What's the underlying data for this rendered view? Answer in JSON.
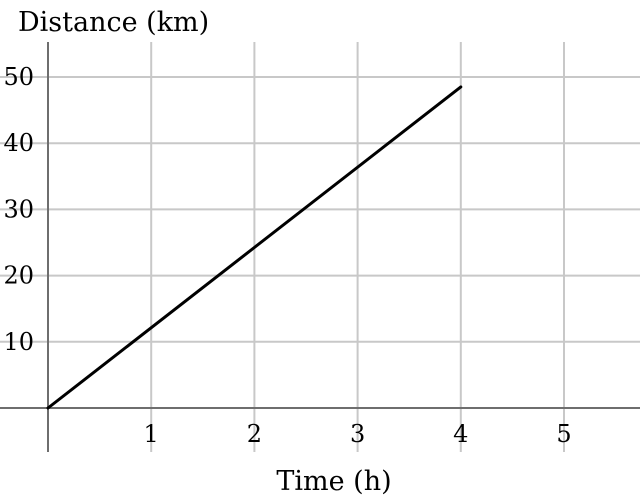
{
  "chart_data": {
    "type": "line",
    "ylabel": "Distance (km)",
    "xlabel": "Time (h)",
    "x_ticks": [
      1,
      2,
      3,
      4,
      5
    ],
    "y_ticks": [
      10,
      20,
      30,
      40,
      50
    ],
    "xlim": [
      0,
      5.8
    ],
    "ylim": [
      -7,
      55
    ],
    "grid": true,
    "series": [
      {
        "x": [
          0,
          4
        ],
        "y": [
          0,
          48.5
        ]
      }
    ],
    "colors": {
      "line": "#000000",
      "grid": "#c8c8c8",
      "axis": "#6e6e6e"
    }
  }
}
